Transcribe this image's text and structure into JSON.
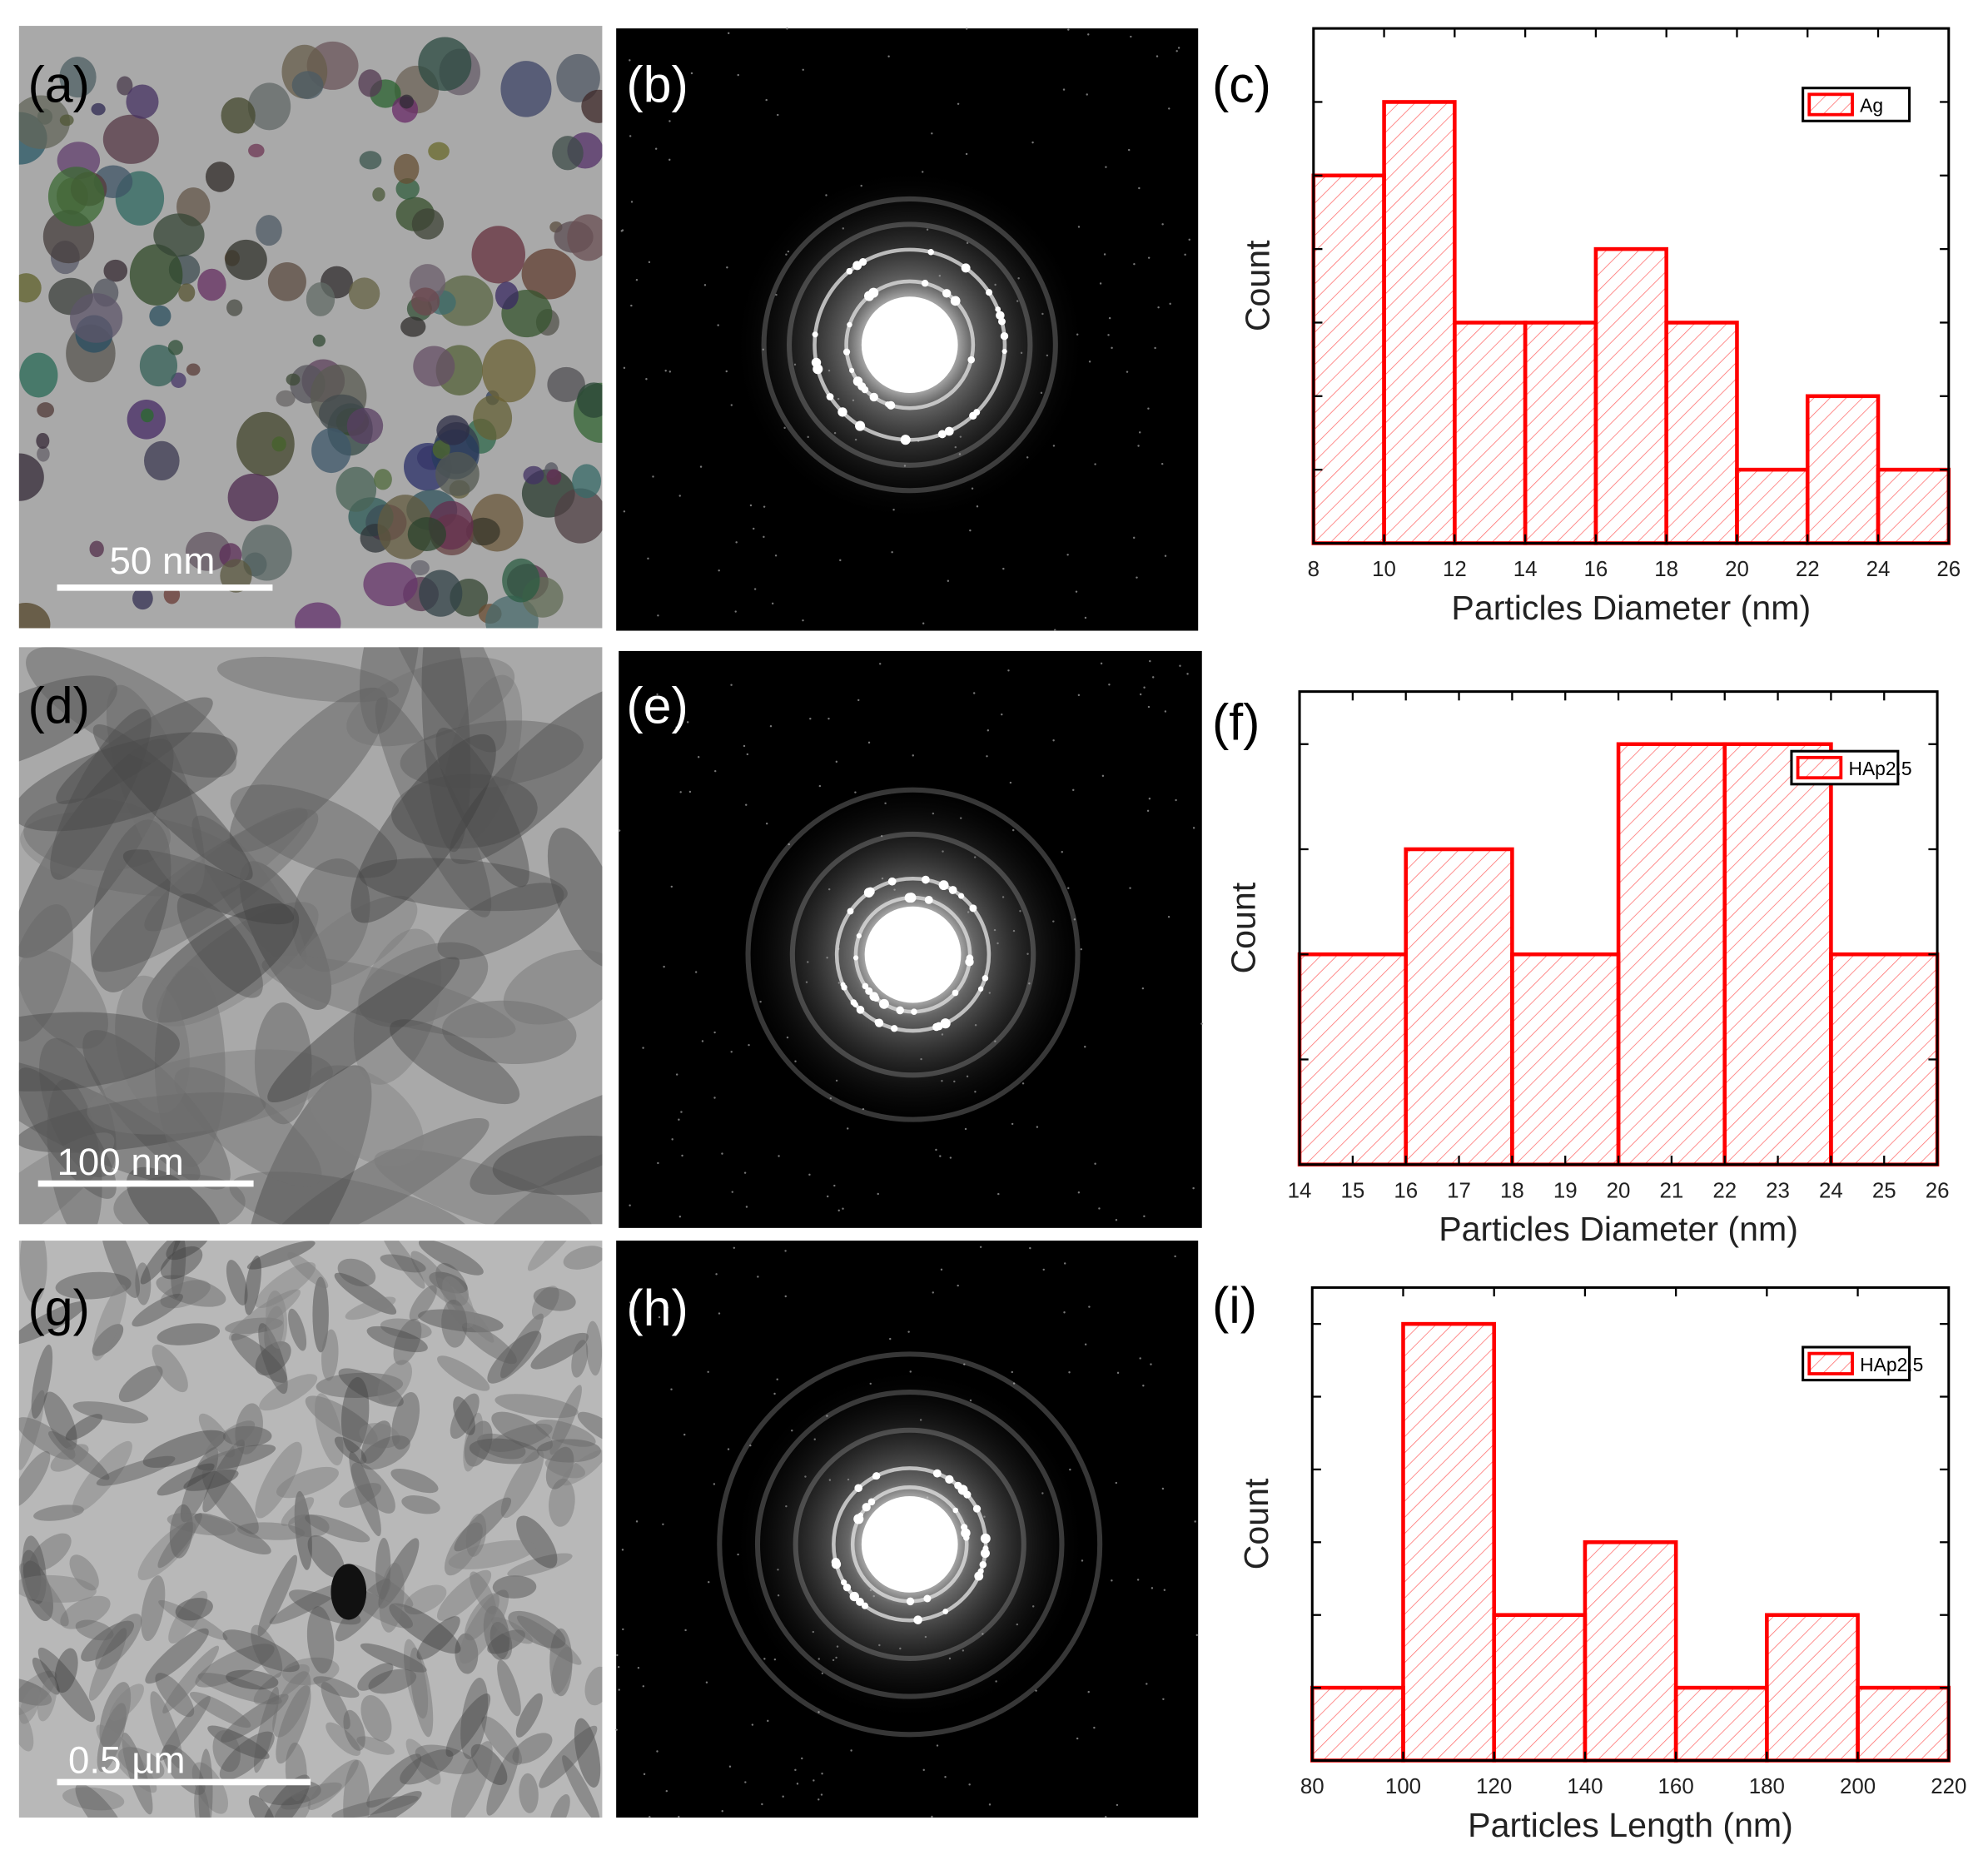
{
  "panels": {
    "labels": [
      "(a)",
      "(b)",
      "(c)",
      "(d)",
      "(e)",
      "(f)",
      "(g)",
      "(h)",
      "(i)"
    ],
    "scale_bars": [
      "50 nm",
      "100 nm",
      "0.5 µm"
    ]
  },
  "chart_data": [
    {
      "type": "histogram",
      "xlabel": "Particles Diameter (nm)",
      "ylabel": "Count",
      "bins": [
        8,
        10,
        12,
        14,
        16,
        18,
        20,
        22,
        24,
        26
      ],
      "series": [
        {
          "name": "Ag",
          "color": "#ff0000",
          "values": [
            5,
            6,
            3,
            3,
            4,
            3,
            1,
            2,
            1
          ]
        }
      ],
      "xlim": [
        8,
        26
      ],
      "xticks": [
        8,
        10,
        12,
        14,
        16,
        18,
        20,
        22,
        24,
        26
      ],
      "ylim": [
        0,
        7
      ],
      "yticks": [
        0,
        1,
        2,
        3,
        4,
        5,
        6
      ],
      "legend": "upper right"
    },
    {
      "type": "histogram",
      "xlabel": "Particles Diameter (nm)",
      "ylabel": "Count",
      "bins": [
        14,
        16,
        18,
        20,
        22,
        24,
        26
      ],
      "series": [
        {
          "name": "HAp2.5",
          "color": "#ff0000",
          "values": [
            2,
            3,
            2,
            4,
            4,
            2
          ]
        }
      ],
      "xlim": [
        14,
        26
      ],
      "xticks": [
        14,
        15,
        16,
        17,
        18,
        19,
        20,
        21,
        22,
        23,
        24,
        25,
        26
      ],
      "ylim": [
        0,
        4.5
      ],
      "yticks": [
        0,
        1,
        2,
        3,
        4
      ],
      "legend": "upper right"
    },
    {
      "type": "histogram",
      "xlabel": "Particles Length (nm)",
      "ylabel": "Count",
      "bins": [
        80,
        100,
        120,
        140,
        160,
        180,
        200,
        220
      ],
      "series": [
        {
          "name": "HAp2.5",
          "color": "#ff0000",
          "values": [
            1,
            6,
            2,
            3,
            1,
            2,
            1
          ]
        }
      ],
      "xlim": [
        80,
        220
      ],
      "xticks": [
        80,
        100,
        120,
        140,
        160,
        180,
        200,
        220
      ],
      "ylim": [
        0,
        6.5
      ],
      "yticks": [
        0,
        1,
        2,
        3,
        4,
        5,
        6
      ],
      "legend": "upper right"
    }
  ]
}
